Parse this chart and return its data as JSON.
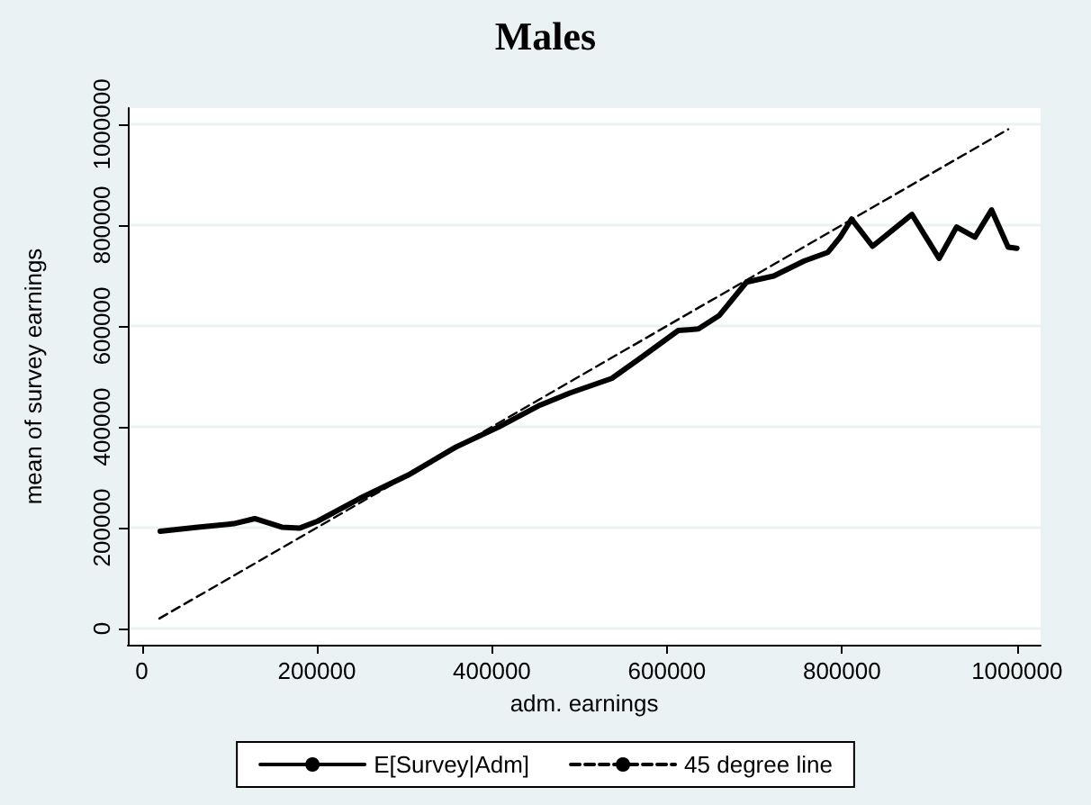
{
  "chart_data": {
    "type": "line",
    "title": "Males",
    "xlabel": "adm. earnings",
    "ylabel": "mean of survey earnings",
    "xlim": [
      -16000,
      1027000
    ],
    "ylim": [
      -32000,
      1032000
    ],
    "xticks": [
      0,
      200000,
      400000,
      600000,
      800000,
      1000000
    ],
    "yticks": [
      0,
      200000,
      400000,
      600000,
      800000,
      1000000
    ],
    "grid": "y",
    "legend": "bottom",
    "marker": "none",
    "series": [
      {
        "name": "E[Survey|Adm]",
        "color": "#000000",
        "line_style": "solid",
        "x": [
          21000,
          64000,
          105000,
          129000,
          160000,
          180000,
          201000,
          249000,
          304000,
          359000,
          407000,
          455000,
          489000,
          537000,
          571000,
          613000,
          636000,
          660000,
          691000,
          722000,
          757000,
          784000,
          798000,
          811000,
          835000,
          880000,
          911000,
          931000,
          952000,
          971000,
          990000,
          1000000
        ],
        "values": [
          193000,
          201000,
          208000,
          218000,
          201000,
          199000,
          213000,
          258000,
          304000,
          360000,
          399000,
          443000,
          467000,
          496000,
          538000,
          591000,
          594000,
          621000,
          687000,
          699000,
          729000,
          746000,
          776000,
          812000,
          758000,
          821000,
          734000,
          796000,
          776000,
          830000,
          756000,
          754000
        ]
      },
      {
        "name": "45 degree line",
        "color": "#000000",
        "line_style": "dashed",
        "x": [
          20000,
          990000
        ],
        "values": [
          20000,
          990000
        ]
      }
    ]
  }
}
